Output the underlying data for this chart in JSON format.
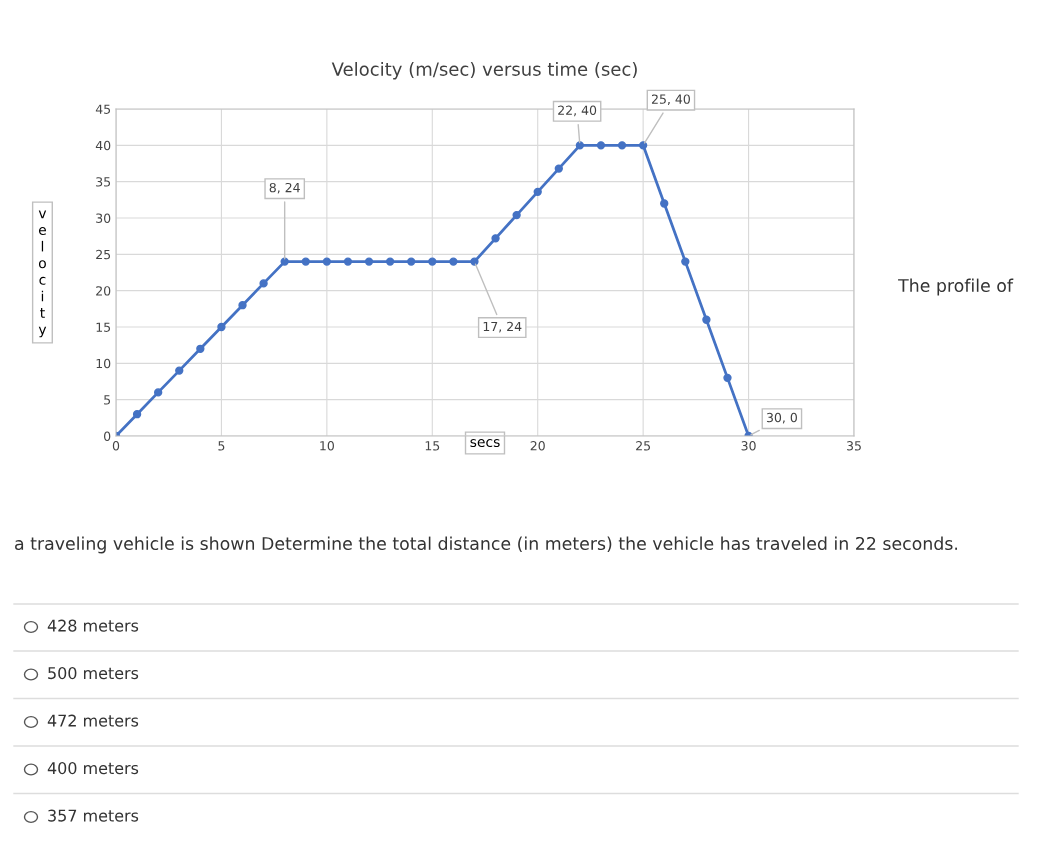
{
  "chart_data": {
    "type": "line",
    "title": "Velocity (m/sec) versus time (sec)",
    "xlabel": "secs",
    "ylabel": "velocity",
    "x": [
      0,
      1,
      2,
      3,
      4,
      5,
      6,
      7,
      8,
      9,
      10,
      11,
      12,
      13,
      14,
      15,
      16,
      17,
      18,
      19,
      20,
      21,
      22,
      23,
      24,
      25,
      26,
      27,
      28,
      29,
      30
    ],
    "series": [
      {
        "color": "#4472c4",
        "values": [
          0,
          3,
          6,
          9,
          12,
          15,
          18,
          21,
          24,
          24,
          24,
          24,
          24,
          24,
          24,
          24,
          24,
          24,
          27.2,
          30.4,
          33.6,
          36.8,
          40,
          40,
          40,
          40,
          32,
          24,
          16,
          8,
          0
        ]
      }
    ],
    "xlim": [
      0,
      35
    ],
    "xticks": [
      0,
      5,
      10,
      15,
      20,
      25,
      30,
      35
    ],
    "ylim": [
      0,
      45
    ],
    "yticks": [
      0,
      5,
      10,
      15,
      20,
      25,
      30,
      35,
      40,
      45
    ],
    "grid": true,
    "marker": "circle",
    "line_style": "solid",
    "annotations": [
      {
        "text": "8, 24",
        "x": 8,
        "y": 24
      },
      {
        "text": "22, 40",
        "x": 22,
        "y": 40
      },
      {
        "text": "25, 40",
        "x": 25,
        "y": 40
      },
      {
        "text": "17, 24",
        "x": 17,
        "y": 24
      },
      {
        "text": "30, 0",
        "x": 30,
        "y": 0
      },
      "The profile of",
      "a traveling vehicle is shown Determine the total distance (in meters) the vehicle has traveled in 22 seconds.",
      "428 meters",
      "500 meters",
      "472 meters",
      "400 meters",
      "357 meters"
    ]
  }
}
